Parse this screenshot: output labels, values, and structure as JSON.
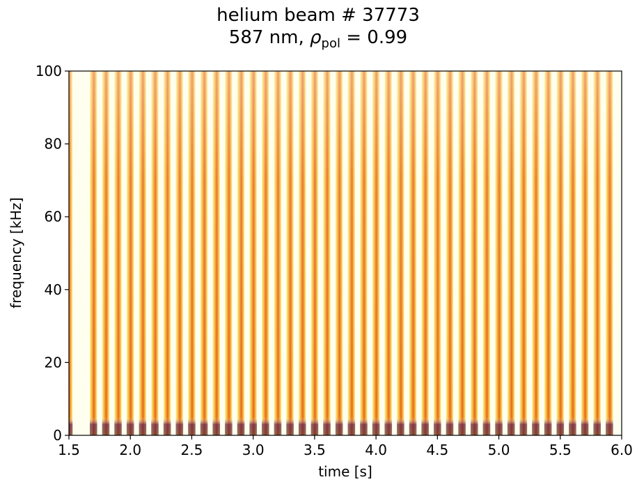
{
  "chart_data": {
    "type": "spectrogram",
    "title": "helium beam # 37773",
    "subtitle": [
      "587 nm, ",
      "ρ",
      "pol",
      " = 0.99"
    ],
    "xlabel": "time [s]",
    "ylabel": "frequency [kHz]",
    "xlim": [
      1.5,
      6.0
    ],
    "ylim": [
      0,
      100
    ],
    "xticks": [
      1.5,
      {
        "value": 2,
        "label": "2.0"
      },
      2.5,
      {
        "value": 3,
        "label": "3.0"
      },
      3.5,
      {
        "value": 4,
        "label": "4.0"
      },
      4.5,
      {
        "value": 5,
        "label": "5.0"
      },
      5.5,
      {
        "value": 6,
        "label": "6.0"
      }
    ],
    "yticks": [
      0,
      20,
      40,
      60,
      80,
      100
    ],
    "x": [
      1.5,
      1.7,
      1.8,
      1.9,
      2.0,
      2.1,
      2.2,
      2.3,
      2.4,
      2.5,
      2.6,
      2.7,
      2.8,
      2.9,
      3.0,
      3.1,
      3.2,
      3.3,
      3.4,
      3.5,
      3.6,
      3.7,
      3.8,
      3.9,
      4.0,
      4.1,
      4.2,
      4.3,
      4.4,
      4.5,
      4.6,
      4.7,
      4.8,
      4.9,
      5.0,
      5.1,
      5.2,
      5.3,
      5.4,
      5.5,
      5.6,
      5.7,
      5.8,
      5.9
    ]
  }
}
